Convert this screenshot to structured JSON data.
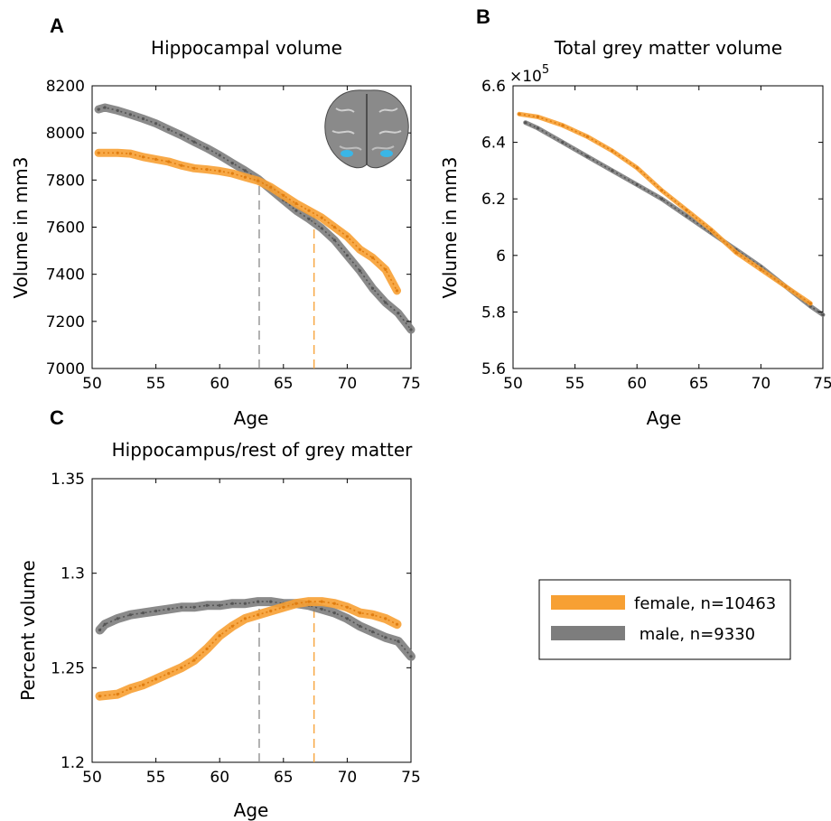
{
  "colors": {
    "female": "#f7a033",
    "male": "#7d7d7d"
  },
  "legend": {
    "female_label": "female, n=10463",
    "male_label": " male, n=9330"
  },
  "icons": {
    "inset": "coronal-brain-mri-icon"
  },
  "chart_data": [
    {
      "panel": "A",
      "type": "line",
      "title": "Hippocampal volume",
      "xlabel": "Age",
      "ylabel": "Volume in mm3",
      "xlim": [
        50,
        75
      ],
      "ylim": [
        7000,
        8200
      ],
      "xticks": [
        "50",
        "55",
        "60",
        "65",
        "70",
        "75"
      ],
      "yticks": [
        "7000",
        "7200",
        "7400",
        "7600",
        "7800",
        "8000",
        "8200"
      ],
      "vlines": [
        {
          "x": 63.1,
          "series": "male"
        },
        {
          "x": 67.4,
          "series": "female"
        }
      ],
      "series": [
        {
          "name": "female",
          "x": [
            50.5,
            52,
            53,
            54,
            55,
            56,
            57,
            58,
            59,
            60,
            61,
            62,
            63,
            64,
            65,
            66,
            67,
            68,
            69,
            70,
            71,
            72,
            73,
            73.9
          ],
          "values": [
            7915,
            7915,
            7912,
            7898,
            7888,
            7878,
            7862,
            7850,
            7845,
            7838,
            7828,
            7812,
            7797,
            7770,
            7735,
            7700,
            7670,
            7640,
            7600,
            7560,
            7505,
            7470,
            7420,
            7330
          ]
        },
        {
          "name": "male",
          "x": [
            50.5,
            51,
            52,
            53,
            54,
            55,
            56,
            57,
            58,
            59,
            60,
            61,
            62,
            63,
            64,
            65,
            66,
            67,
            68,
            69,
            70,
            71,
            72,
            73,
            74,
            75
          ],
          "values": [
            8100,
            8108,
            8095,
            8078,
            8060,
            8040,
            8015,
            7990,
            7962,
            7935,
            7905,
            7872,
            7840,
            7805,
            7760,
            7715,
            7670,
            7635,
            7595,
            7545,
            7480,
            7415,
            7340,
            7280,
            7235,
            7165
          ]
        }
      ]
    },
    {
      "panel": "B",
      "type": "line",
      "title": "Total grey matter volume",
      "exponent_label": "×10",
      "exponent_value": "5",
      "xlabel": "Age",
      "ylabel": "Volume in mm3",
      "xlim": [
        50,
        75
      ],
      "ylim": [
        5.6,
        6.6
      ],
      "xticks": [
        "50",
        "55",
        "60",
        "65",
        "70",
        "75"
      ],
      "yticks": [
        "5.6",
        "5.8",
        "6",
        "6.2",
        "6.4",
        "6.6"
      ],
      "series": [
        {
          "name": "female",
          "x": [
            50.5,
            52,
            54,
            56,
            58,
            60,
            62,
            64,
            66,
            68,
            70,
            72,
            74
          ],
          "values": [
            6.5,
            6.49,
            6.46,
            6.42,
            6.37,
            6.31,
            6.23,
            6.16,
            6.09,
            6.01,
            5.95,
            5.89,
            5.83
          ]
        },
        {
          "name": "male",
          "x": [
            51,
            52,
            54,
            56,
            58,
            60,
            62,
            64,
            66,
            68,
            70,
            72,
            74,
            75
          ],
          "values": [
            6.47,
            6.45,
            6.4,
            6.35,
            6.3,
            6.25,
            6.2,
            6.14,
            6.08,
            6.02,
            5.96,
            5.89,
            5.82,
            5.79
          ]
        }
      ]
    },
    {
      "panel": "C",
      "type": "line",
      "title": "Hippocampus/rest of grey matter",
      "xlabel": "Age",
      "ylabel": "Percent volume",
      "xlim": [
        50,
        75
      ],
      "ylim": [
        1.2,
        1.35
      ],
      "xticks": [
        "50",
        "55",
        "60",
        "65",
        "70",
        "75"
      ],
      "yticks": [
        "1.2",
        "1.25",
        "1.3",
        "1.35"
      ],
      "vlines": [
        {
          "x": 63.1,
          "series": "male"
        },
        {
          "x": 67.4,
          "series": "female"
        }
      ],
      "series": [
        {
          "name": "female",
          "x": [
            50.6,
            52,
            53,
            54,
            55,
            56,
            57,
            58,
            59,
            60,
            61,
            62,
            63,
            64,
            65,
            66,
            67,
            68,
            69,
            70,
            71,
            72,
            73,
            73.9
          ],
          "values": [
            1.235,
            1.236,
            1.239,
            1.241,
            1.244,
            1.247,
            1.25,
            1.254,
            1.26,
            1.267,
            1.272,
            1.276,
            1.278,
            1.28,
            1.282,
            1.284,
            1.285,
            1.285,
            1.284,
            1.282,
            1.279,
            1.278,
            1.276,
            1.273
          ]
        },
        {
          "name": "male",
          "x": [
            50.6,
            51,
            52,
            53,
            54,
            55,
            56,
            57,
            58,
            59,
            60,
            61,
            62,
            63,
            64,
            65,
            66,
            67,
            68,
            69,
            70,
            71,
            72,
            73,
            74,
            75
          ],
          "values": [
            1.27,
            1.273,
            1.276,
            1.278,
            1.279,
            1.28,
            1.281,
            1.282,
            1.282,
            1.283,
            1.283,
            1.284,
            1.284,
            1.285,
            1.285,
            1.284,
            1.284,
            1.283,
            1.281,
            1.279,
            1.276,
            1.272,
            1.269,
            1.266,
            1.264,
            1.256
          ]
        }
      ]
    }
  ]
}
